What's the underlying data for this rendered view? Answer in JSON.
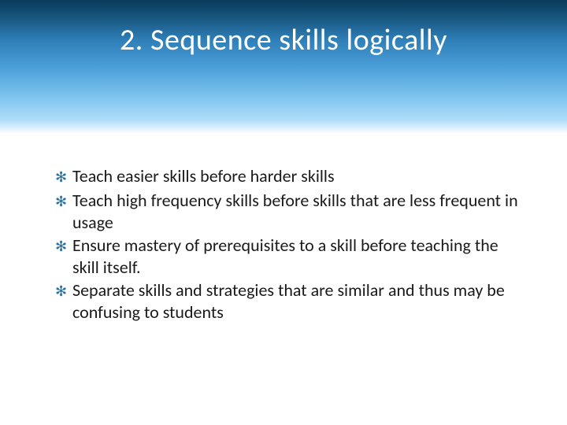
{
  "slide": {
    "title": "2. Sequence skills logically",
    "title_color": "#ffffff",
    "title_fontsize": 38,
    "band_gradient": {
      "stops": [
        {
          "color": "#0a3a5a",
          "at": 0
        },
        {
          "color": "#1a5a85",
          "at": 15
        },
        {
          "color": "#2f7fb8",
          "at": 30
        },
        {
          "color": "#4a9ed8",
          "at": 50
        },
        {
          "color": "#78c0ec",
          "at": 70
        },
        {
          "color": "#b0def8",
          "at": 90
        },
        {
          "color": "#ffffff",
          "at": 100
        }
      ],
      "height": 170
    },
    "background_color": "#ffffff",
    "bullet_marker": "✻",
    "bullet_marker_color": "#2a6fa0",
    "body_text_color": "#1a1a1a",
    "body_fontsize": 22,
    "bullets": [
      "Teach easier skills before harder skills",
      "Teach high frequency skills before skills that are less frequent in usage",
      "Ensure mastery of prerequisites to a skill before teaching the skill itself.",
      "Separate skills and strategies that are similar and thus may be confusing to students"
    ]
  }
}
